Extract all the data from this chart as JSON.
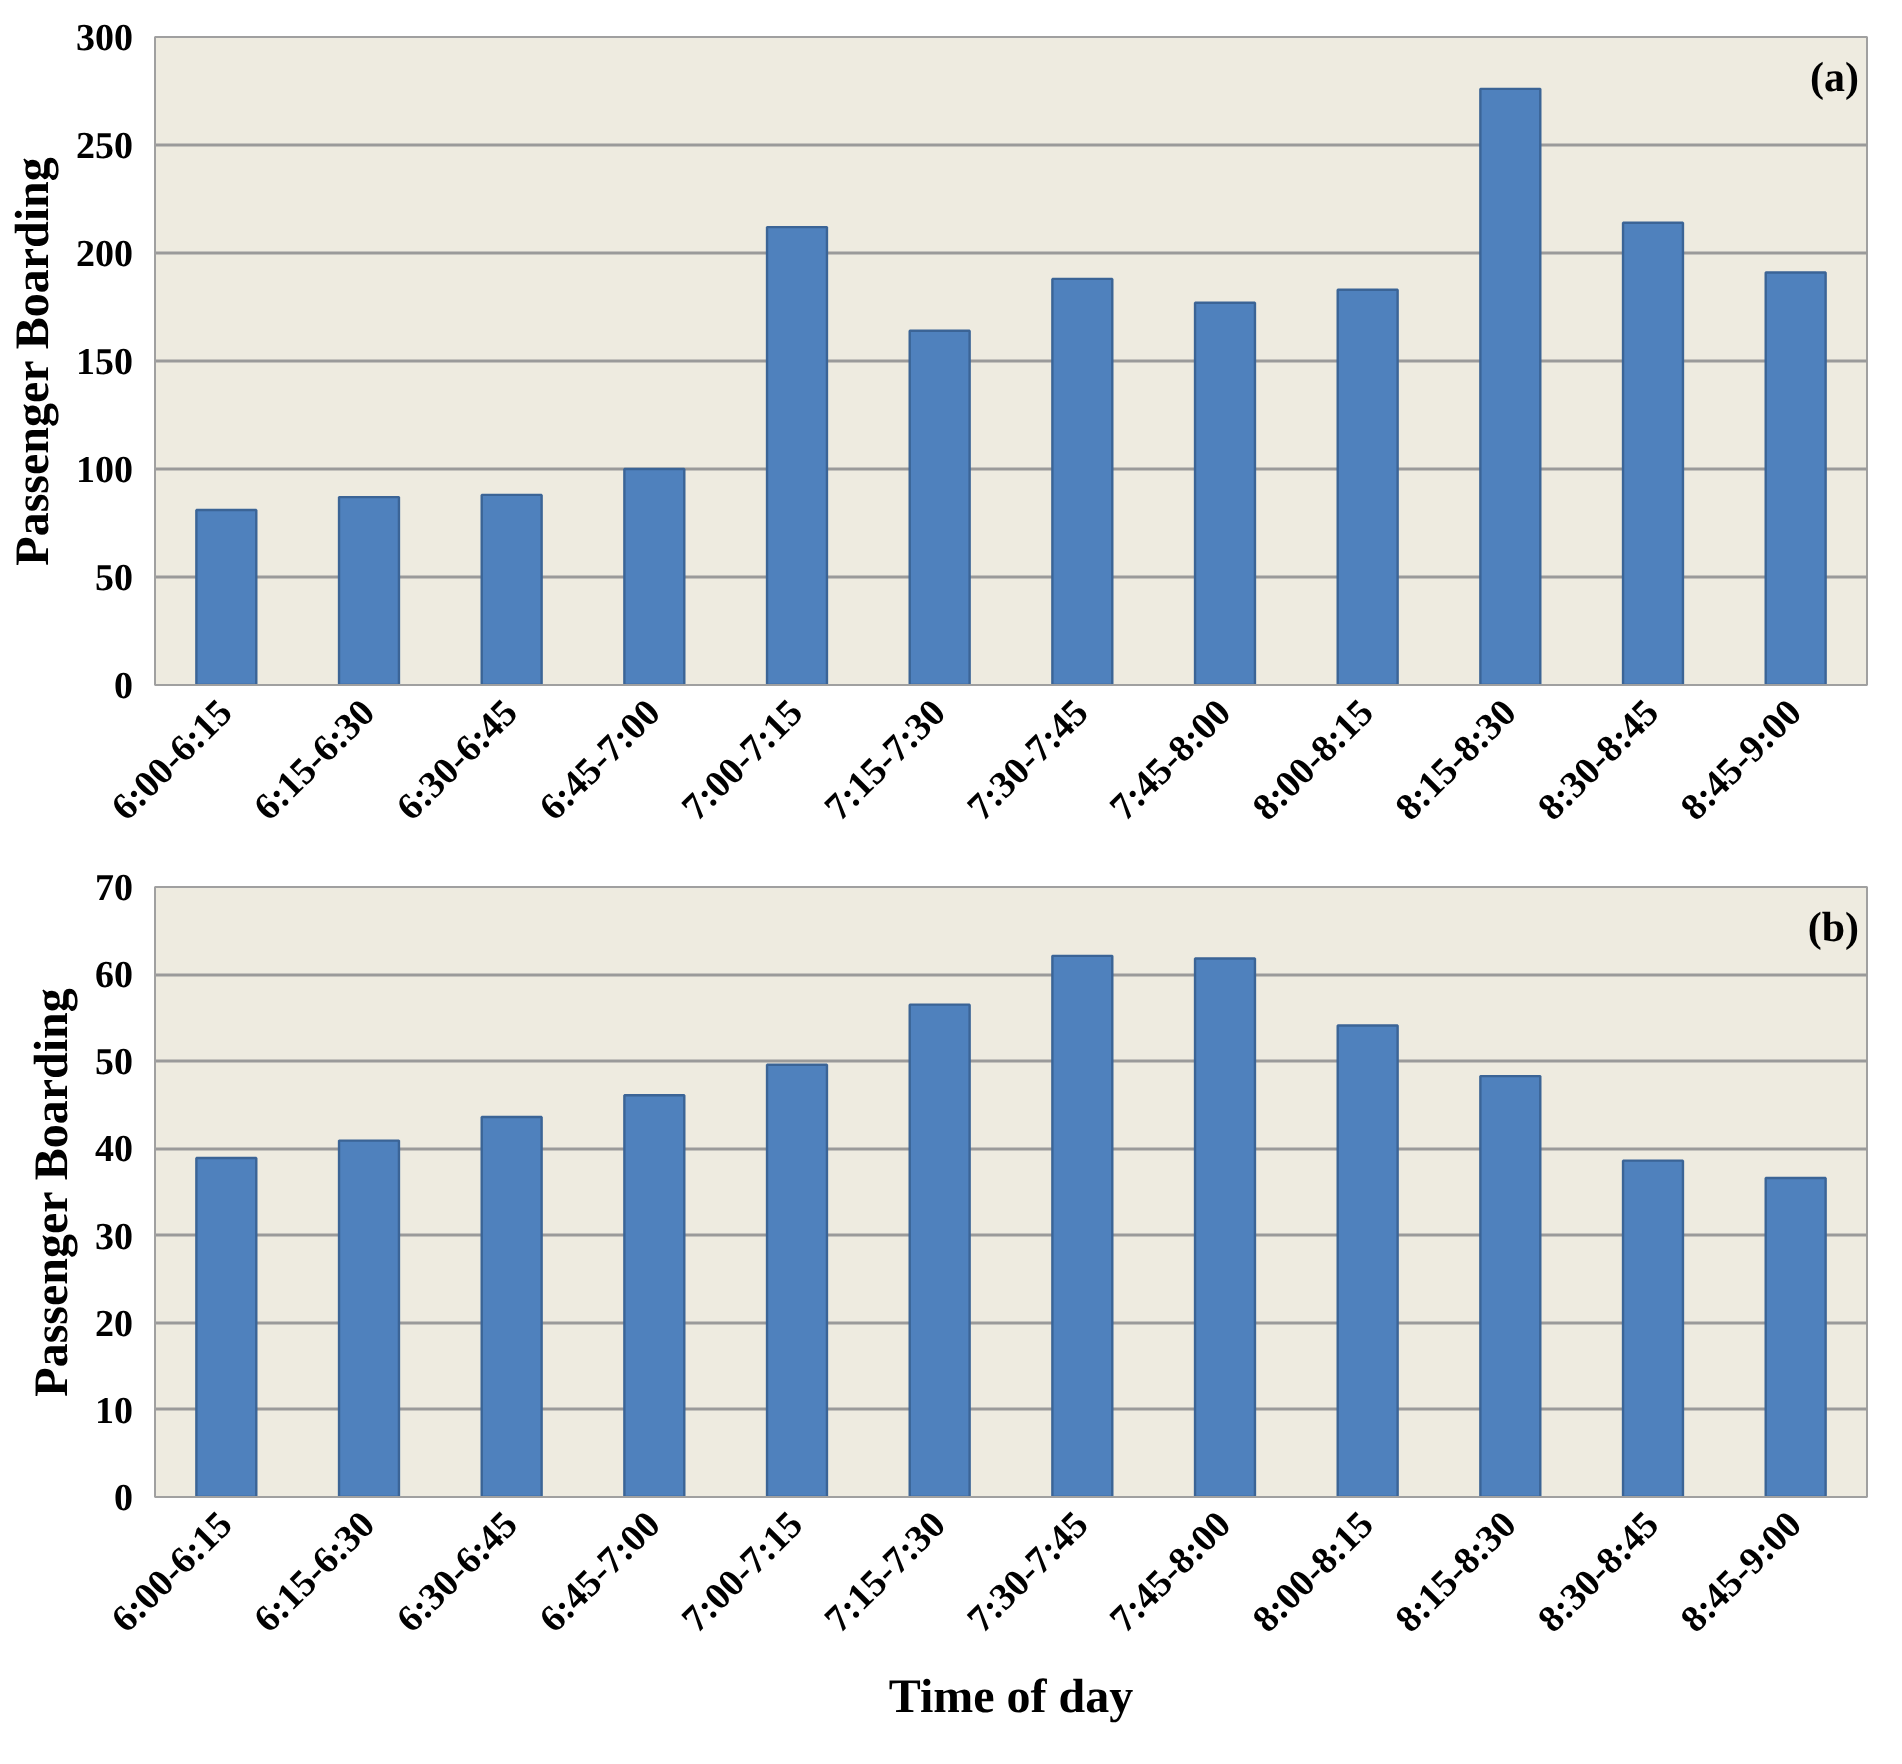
{
  "chart_data": [
    {
      "type": "bar",
      "ylabel": "Passenger Boarding",
      "annotations": [
        "(a)"
      ],
      "categories": [
        "6:00-6:15",
        "6:15-6:30",
        "6:30-6:45",
        "6:45-7:00",
        "7:00-7:15",
        "7:15-7:30",
        "7:30-7:45",
        "7:45-8:00",
        "8:00-8:15",
        "8:15-8:30",
        "8:30-8:45",
        "8:45-9:00"
      ],
      "color": "#4f81bd",
      "values": [
        81,
        87,
        88,
        100,
        212,
        164,
        188,
        177,
        183,
        276,
        214,
        191
      ],
      "ylim": [
        0,
        300
      ],
      "yticks": [
        0,
        50,
        100,
        150,
        200,
        250,
        300
      ],
      "grid": "y"
    },
    {
      "type": "bar",
      "ylabel": "Passenger Boarding",
      "xlabel": "Time of day",
      "annotations": [
        "(b)"
      ],
      "categories": [
        "6:00-6:15",
        "6:15-6:30",
        "6:30-6:45",
        "6:45-7:00",
        "7:00-7:15",
        "7:15-7:30",
        "7:30-7:45",
        "7:45-8:00",
        "8:00-8:15",
        "8:15-8:30",
        "8:30-8:45",
        "8:45-9:00"
      ],
      "color": "#4f81bd",
      "values": [
        38.9,
        40.9,
        43.6,
        46.1,
        49.6,
        56.5,
        62.1,
        61.8,
        54.1,
        48.3,
        38.6,
        36.6
      ],
      "ylim": [
        0,
        70
      ],
      "yticks": [
        0,
        10,
        20,
        30,
        40,
        50,
        60,
        70
      ],
      "grid": "y"
    }
  ]
}
